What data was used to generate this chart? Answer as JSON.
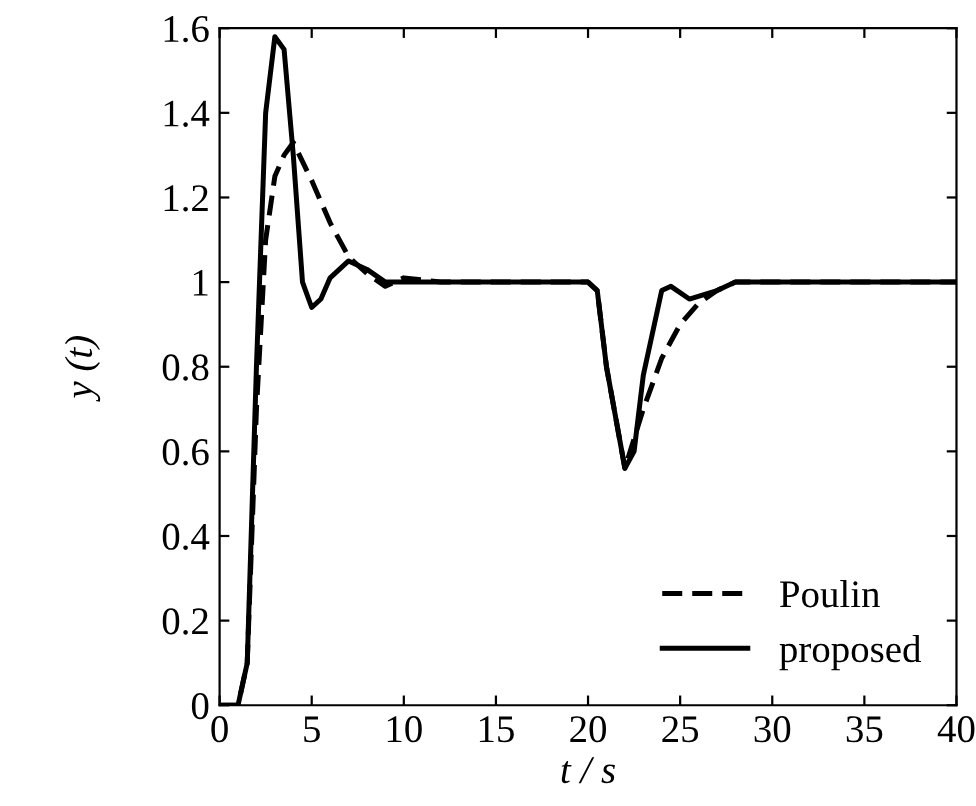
{
  "chart_data": {
    "type": "line",
    "xlabel": "t / s",
    "ylabel": "y (t)",
    "xlim": [
      0,
      40
    ],
    "xticks": [
      0,
      5,
      10,
      15,
      20,
      25,
      30,
      35,
      40
    ],
    "ylim": [
      0,
      1.6
    ],
    "yticks": [
      0,
      0.2,
      0.4,
      0.6,
      0.8,
      1,
      1.2,
      1.4,
      1.6
    ],
    "grid": false,
    "legend": "bottom right",
    "series": [
      {
        "name": "Poulin",
        "color": "#000000",
        "line_style": "dashed",
        "x": [
          0,
          1,
          1.5,
          2,
          2.5,
          3,
          3.5,
          4,
          5,
          6,
          7,
          8,
          9,
          10,
          12,
          20,
          20.5,
          21,
          22,
          23,
          24,
          25,
          26,
          27,
          28,
          40
        ],
        "values": [
          0,
          0,
          0.1,
          0.7,
          1.1,
          1.25,
          1.3,
          1.33,
          1.24,
          1.14,
          1.06,
          1.02,
          0.99,
          1.01,
          1.0,
          1.0,
          0.98,
          0.8,
          0.56,
          0.7,
          0.82,
          0.9,
          0.95,
          0.98,
          1.0,
          1.0
        ]
      },
      {
        "name": "proposed",
        "color": "#000000",
        "line_style": "solid",
        "x": [
          0,
          1,
          1.5,
          2,
          2.5,
          3,
          3.5,
          4,
          4.5,
          5,
          5.5,
          6,
          7,
          8,
          9,
          10,
          12,
          15,
          20,
          20.5,
          21,
          22,
          22.5,
          23,
          24,
          24.5,
          25.5,
          27,
          28,
          30,
          40
        ],
        "values": [
          0,
          0,
          0.1,
          0.8,
          1.4,
          1.58,
          1.55,
          1.3,
          1.0,
          0.94,
          0.96,
          1.01,
          1.05,
          1.03,
          1.0,
          1.0,
          1.0,
          1.0,
          1.0,
          0.98,
          0.8,
          0.56,
          0.6,
          0.78,
          0.98,
          0.99,
          0.96,
          0.98,
          1.0,
          1.0,
          1.0
        ]
      }
    ]
  }
}
